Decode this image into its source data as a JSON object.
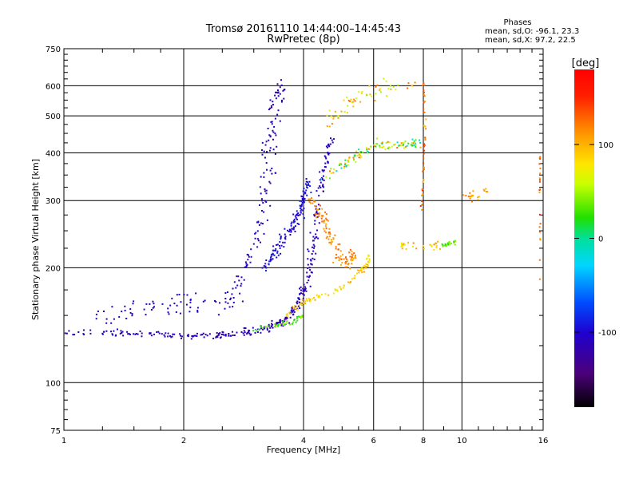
{
  "title_line1": "Tromsø 20161110 14:44:00–14:45:43",
  "title_line2": "RwPretec (8p)",
  "stats": {
    "heading": "Phases",
    "line_o": "mean, sd,O: -96.1, 23.3",
    "line_x": "mean, sd,X:  97.2, 22.5"
  },
  "colorbar": {
    "unit_label": "[deg]",
    "ticks": [
      {
        "value": 100,
        "label": "100"
      },
      {
        "value": 0,
        "label": "0"
      },
      {
        "value": -100,
        "label": "-100"
      }
    ],
    "range": [
      -180,
      180
    ]
  },
  "chart_data": {
    "type": "scatter",
    "title": "Tromsø 20161110 14:44:00–14:45:43",
    "subtitle": "RwPretec (8p)",
    "xlabel": "Frequency [MHz]",
    "ylabel": "Stationary phase Virtual Height [km]",
    "xscale": "log",
    "yscale": "log",
    "xlim": [
      1,
      16
    ],
    "ylim": [
      75,
      750
    ],
    "xticks": [
      1,
      2,
      4,
      6,
      8,
      10,
      16
    ],
    "xtick_labels": [
      "1",
      "2",
      "4",
      "6",
      "8",
      "10",
      "16"
    ],
    "yticks": [
      75,
      100,
      200,
      300,
      400,
      500,
      600,
      750
    ],
    "ytick_labels": [
      "75",
      "100",
      "200",
      "300",
      "400",
      "500",
      "600",
      "750"
    ],
    "grid": true,
    "color_scale": "phase [deg]",
    "series": [
      {
        "trace": [
          [
            1.0,
            135
          ],
          [
            1.3,
            135
          ],
          [
            1.6,
            134
          ],
          [
            2.0,
            133
          ],
          [
            2.4,
            133
          ],
          [
            2.7,
            134
          ],
          [
            3.0,
            136
          ],
          [
            3.3,
            140
          ],
          [
            3.6,
            146
          ],
          [
            3.85,
            158
          ],
          [
            4.0,
            172
          ],
          [
            4.15,
            200
          ],
          [
            4.25,
            240
          ],
          [
            4.4,
            300
          ],
          [
            4.55,
            380
          ],
          [
            4.7,
            440
          ]
        ],
        "spread": [
          0.035,
          0.035
        ],
        "n": 340,
        "phase": [
          -125,
          -100
        ]
      },
      {
        "trace": [
          [
            1.2,
            150
          ],
          [
            1.6,
            155
          ],
          [
            2.0,
            160
          ],
          [
            2.4,
            160
          ],
          [
            2.8,
            168
          ]
        ],
        "spread": [
          0.06,
          0.1
        ],
        "n": 70,
        "phase": [
          -120,
          -95
        ]
      },
      {
        "trace": [
          [
            2.6,
            160
          ],
          [
            3.0,
            220
          ],
          [
            3.2,
            300
          ],
          [
            3.25,
            400
          ],
          [
            3.4,
            520
          ],
          [
            3.5,
            590
          ]
        ],
        "spread": [
          0.06,
          0.08
        ],
        "n": 130,
        "phase": [
          -130,
          -95
        ]
      },
      {
        "trace": [
          [
            3.2,
            200
          ],
          [
            3.5,
            230
          ],
          [
            3.8,
            260
          ],
          [
            4.0,
            300
          ],
          [
            4.1,
            340
          ]
        ],
        "spread": [
          0.04,
          0.06
        ],
        "n": 130,
        "phase": [
          -110,
          -85
        ]
      },
      {
        "trace": [
          [
            3.0,
            138
          ],
          [
            3.4,
            141
          ],
          [
            3.8,
            145
          ],
          [
            4.0,
            150
          ]
        ],
        "spread": [
          0.02,
          0.02
        ],
        "n": 40,
        "phase": [
          10,
          60
        ]
      },
      {
        "trace": [
          [
            3.6,
            150
          ],
          [
            3.9,
            160
          ],
          [
            4.2,
            165
          ],
          [
            4.6,
            170
          ],
          [
            5.0,
            178
          ],
          [
            5.4,
            188
          ],
          [
            5.7,
            200
          ],
          [
            5.9,
            215
          ]
        ],
        "spread": [
          0.02,
          0.03
        ],
        "n": 90,
        "phase": [
          70,
          110
        ]
      },
      {
        "trace": [
          [
            4.2,
            300
          ],
          [
            4.5,
            270
          ],
          [
            4.7,
            240
          ],
          [
            4.9,
            215
          ],
          [
            5.2,
            205
          ],
          [
            5.4,
            220
          ]
        ],
        "spread": [
          0.04,
          0.06
        ],
        "n": 110,
        "phase": [
          100,
          135
        ]
      },
      {
        "trace": [
          [
            4.3,
            340
          ],
          [
            4.8,
            360
          ],
          [
            5.2,
            380
          ],
          [
            5.6,
            400
          ],
          [
            6.0,
            420
          ],
          [
            6.5,
            420
          ],
          [
            7.0,
            420
          ],
          [
            7.5,
            422
          ],
          [
            8.0,
            425
          ]
        ],
        "spread": [
          0.04,
          0.04
        ],
        "n": 110,
        "phase": [
          -30,
          130
        ]
      },
      {
        "trace": [
          [
            7.0,
            230
          ],
          [
            7.5,
            225
          ],
          [
            8.2,
            225
          ],
          [
            8.8,
            230
          ]
        ],
        "spread": [
          0.02,
          0.04
        ],
        "n": 30,
        "phase": [
          60,
          120
        ]
      },
      {
        "trace": [
          [
            8.9,
            230
          ],
          [
            9.3,
            232
          ],
          [
            9.6,
            234
          ]
        ],
        "spread": [
          0.01,
          0.02
        ],
        "n": 25,
        "phase": [
          20,
          50
        ]
      },
      {
        "trace": [
          [
            4.5,
            480
          ],
          [
            5.0,
            520
          ],
          [
            5.5,
            560
          ],
          [
            6.5,
            600
          ],
          [
            8.0,
            620
          ]
        ],
        "spread": [
          0.06,
          0.08
        ],
        "n": 60,
        "phase": [
          40,
          130
        ]
      },
      {
        "trace": [
          [
            7.9,
            280
          ],
          [
            8.0,
            360
          ],
          [
            8.1,
            480
          ],
          [
            8.0,
            600
          ]
        ],
        "spread": [
          0.01,
          0.12
        ],
        "n": 40,
        "phase": [
          90,
          150
        ]
      },
      {
        "trace": [
          [
            10.2,
            300
          ],
          [
            10.8,
            310
          ],
          [
            11.5,
            320
          ]
        ],
        "spread": [
          0.03,
          0.05
        ],
        "n": 20,
        "phase": [
          90,
          130
        ]
      },
      {
        "trace": [
          [
            15.7,
            200
          ],
          [
            15.7,
            300
          ],
          [
            15.7,
            450
          ]
        ],
        "spread": [
          0.005,
          0.25
        ],
        "n": 20,
        "phase": [
          100,
          150
        ]
      }
    ]
  }
}
